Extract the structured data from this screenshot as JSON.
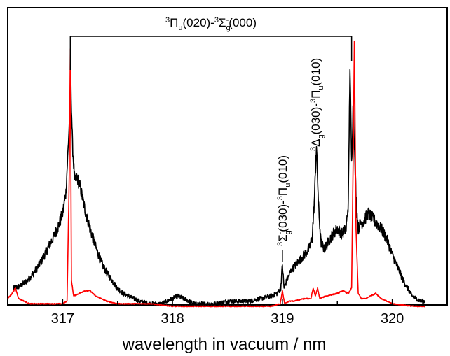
{
  "chart_data": {
    "type": "line",
    "title": "",
    "xlabel": "wavelength in vacuum / nm",
    "ylabel": "",
    "xlim": [
      316.5,
      320.5
    ],
    "ylim": [
      0,
      1
    ],
    "xticks": [
      317,
      318,
      319,
      320
    ],
    "xtick_labels": [
      "317",
      "318",
      "319",
      "320"
    ],
    "yticks_shown": false,
    "grid": false,
    "legend": "none",
    "series": [
      {
        "color": "#000000",
        "x": [
          316.55,
          316.62,
          316.68,
          316.74,
          316.8,
          316.86,
          316.92,
          316.97,
          317.0,
          317.03,
          317.06,
          317.075,
          317.09,
          317.11,
          317.13,
          317.16,
          317.2,
          317.25,
          317.3,
          317.35,
          317.4,
          317.45,
          317.5,
          317.55,
          317.6,
          317.7,
          317.8,
          317.9,
          318.0,
          318.05,
          318.1,
          318.2,
          318.3,
          318.4,
          318.5,
          318.6,
          318.7,
          318.8,
          318.9,
          318.95,
          318.985,
          319.0,
          319.015,
          319.04,
          319.08,
          319.12,
          319.16,
          319.2,
          319.24,
          319.27,
          319.29,
          319.31,
          319.33,
          319.35,
          319.38,
          319.42,
          319.46,
          319.5,
          319.54,
          319.58,
          319.6,
          319.615,
          319.63,
          319.645,
          319.66,
          319.675,
          319.69,
          319.71,
          319.74,
          319.78,
          319.82,
          319.86,
          319.9,
          319.95,
          320.0,
          320.05,
          320.1,
          320.18,
          320.26,
          320.3
        ],
        "y": [
          0.07,
          0.08,
          0.1,
          0.13,
          0.17,
          0.22,
          0.27,
          0.32,
          0.36,
          0.44,
          0.7,
          0.85,
          0.62,
          0.48,
          0.5,
          0.46,
          0.38,
          0.3,
          0.23,
          0.17,
          0.13,
          0.1,
          0.07,
          0.05,
          0.04,
          0.02,
          0.01,
          0.01,
          0.03,
          0.04,
          0.03,
          0.01,
          0.01,
          0.01,
          0.02,
          0.02,
          0.02,
          0.03,
          0.04,
          0.05,
          0.07,
          0.16,
          0.07,
          0.1,
          0.14,
          0.16,
          0.18,
          0.2,
          0.22,
          0.26,
          0.4,
          0.62,
          0.38,
          0.25,
          0.22,
          0.25,
          0.28,
          0.3,
          0.28,
          0.3,
          0.4,
          0.93,
          0.55,
          0.8,
          0.55,
          0.38,
          0.3,
          0.32,
          0.33,
          0.36,
          0.34,
          0.32,
          0.3,
          0.26,
          0.2,
          0.15,
          0.1,
          0.04,
          0.02,
          0.02
        ]
      },
      {
        "color": "#ff0000",
        "x": [
          316.5,
          316.54,
          316.57,
          316.6,
          316.65,
          316.7,
          316.8,
          316.9,
          317.0,
          317.04,
          317.06,
          317.07,
          317.08,
          317.1,
          317.15,
          317.2,
          317.25,
          317.3,
          317.4,
          317.5,
          317.6,
          317.8,
          318.0,
          318.5,
          318.9,
          318.98,
          319.0,
          319.02,
          319.06,
          319.1,
          319.2,
          319.26,
          319.28,
          319.3,
          319.32,
          319.34,
          319.4,
          319.5,
          319.55,
          319.6,
          319.63,
          319.645,
          319.655,
          319.67,
          319.69,
          319.72,
          319.76,
          319.8,
          319.85,
          319.9,
          320.0,
          320.2,
          320.3
        ],
        "y": [
          0.03,
          0.05,
          0.07,
          0.03,
          0.02,
          0.01,
          0.01,
          0.01,
          0.01,
          0.02,
          0.5,
          1.0,
          0.1,
          0.04,
          0.05,
          0.06,
          0.06,
          0.04,
          0.02,
          0.01,
          0.01,
          0.01,
          0.0,
          0.0,
          0.0,
          0.01,
          0.06,
          0.01,
          0.02,
          0.02,
          0.03,
          0.03,
          0.07,
          0.04,
          0.07,
          0.03,
          0.04,
          0.05,
          0.06,
          0.05,
          0.07,
          0.6,
          1.02,
          0.3,
          0.05,
          0.03,
          0.03,
          0.04,
          0.05,
          0.03,
          0.01,
          0.0,
          0.0
        ]
      }
    ],
    "annotations": [
      {
        "bracket": [
          317.07,
          319.63
        ],
        "label": {
          "pre": "3",
          "main": "Π",
          "sub": "u",
          "post": "(020)-",
          "pre2": "3",
          "main2": "Σ",
          "sub2": "g",
          "sup2": "-",
          "post2": "(000)"
        }
      },
      {
        "vertical": true,
        "at": 319.0,
        "label": {
          "pre": "3",
          "main": "Σ",
          "sub": "g",
          "sup": "-",
          "post": "(030)-",
          "pre2": "3",
          "main2": "Π",
          "sub2": "u",
          "post2": "(010)"
        }
      },
      {
        "vertical": true,
        "at": 319.3,
        "label": {
          "pre": "3",
          "main": "Δ",
          "sub": "g",
          "post": "(030)-",
          "pre2": "3",
          "main2": "Π",
          "sub2": "u",
          "post2": "(010)"
        }
      }
    ]
  }
}
